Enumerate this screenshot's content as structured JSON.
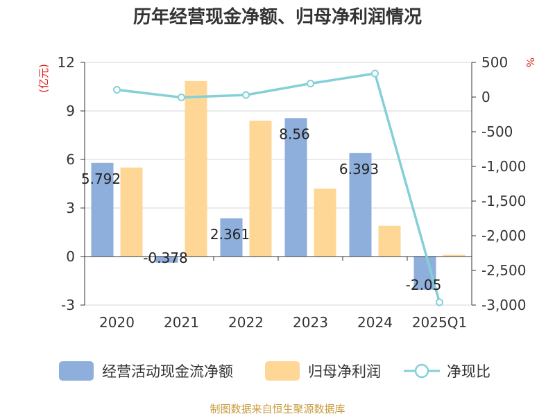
{
  "chart_data": {
    "type": "bar",
    "title": "历年经营现金净额、归母净利润情况",
    "categories": [
      "2020",
      "2021",
      "2022",
      "2023",
      "2024",
      "2025Q1"
    ],
    "left_axis": {
      "unit": "(亿元)",
      "ylim": [
        -3,
        12
      ],
      "ticks": [
        "12",
        "9",
        "6",
        "3",
        "0",
        "-3"
      ]
    },
    "right_axis": {
      "unit": "%",
      "ylim": [
        -3000,
        500
      ],
      "ticks": [
        "500",
        "0",
        "-500",
        "-1,000",
        "-1,500",
        "-2,000",
        "-2,500",
        "-3,000"
      ]
    },
    "series": [
      {
        "name": "经营活动现金流净额",
        "kind": "bar",
        "axis": "left",
        "color": "#8eaedc",
        "values": [
          5.792,
          -0.378,
          2.361,
          8.56,
          6.393,
          -2.05
        ],
        "labels": [
          "5.792",
          "-0.378",
          "2.361",
          "8.56",
          "6.393",
          "-2.05"
        ]
      },
      {
        "name": "归母净利润",
        "kind": "bar",
        "axis": "left",
        "color": "#fed797",
        "values": [
          5.5,
          10.85,
          8.4,
          4.2,
          1.9,
          0.1
        ]
      },
      {
        "name": "净现比",
        "kind": "line",
        "axis": "right",
        "color": "#84d0d6",
        "values": [
          105,
          -5,
          30,
          195,
          340,
          -2960
        ]
      }
    ],
    "grid": true,
    "legend_position": "bottom"
  },
  "source": "制图数据来自恒生聚源数据库"
}
